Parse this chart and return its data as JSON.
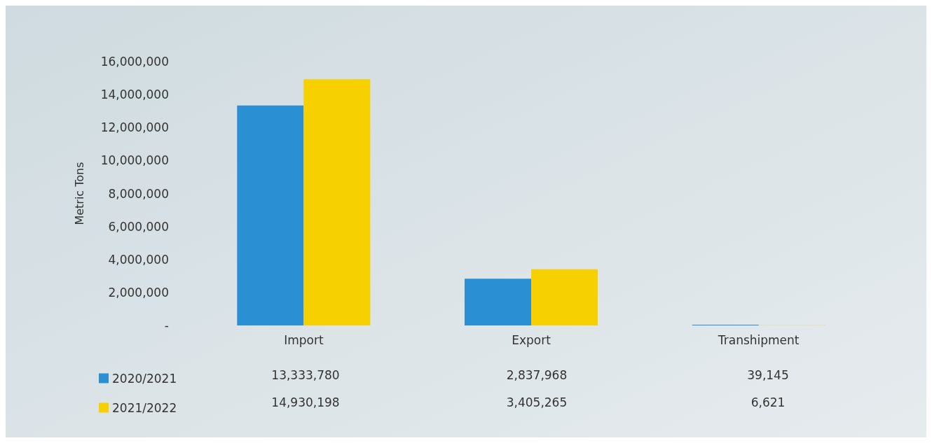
{
  "chart_data": {
    "type": "bar",
    "ylabel": "Metric Tons",
    "categories": [
      "Import",
      "Export",
      "Transhipment"
    ],
    "series": [
      {
        "name": "2020/2021",
        "color": "#2a8fd3",
        "values": [
          13333780,
          2837968,
          39145
        ],
        "value_labels": [
          "13,333,780",
          "2,837,968",
          "39,145"
        ]
      },
      {
        "name": "2021/2022",
        "color": "#f7d000",
        "values": [
          14930198,
          3405265,
          6621
        ],
        "value_labels": [
          "14,930,198",
          "3,405,265",
          "6,621"
        ]
      }
    ],
    "ylim": [
      0,
      16000000
    ],
    "yticks": [
      {
        "value": 0,
        "label": "-"
      },
      {
        "value": 2000000,
        "label": "2,000,000"
      },
      {
        "value": 4000000,
        "label": "4,000,000"
      },
      {
        "value": 6000000,
        "label": "6,000,000"
      },
      {
        "value": 8000000,
        "label": "8,000,000"
      },
      {
        "value": 10000000,
        "label": "10,000,000"
      },
      {
        "value": 12000000,
        "label": "12,000,000"
      },
      {
        "value": 14000000,
        "label": "14,000,000"
      },
      {
        "value": 16000000,
        "label": "16,000,000"
      }
    ],
    "grid": false,
    "legend": "bottom left"
  }
}
